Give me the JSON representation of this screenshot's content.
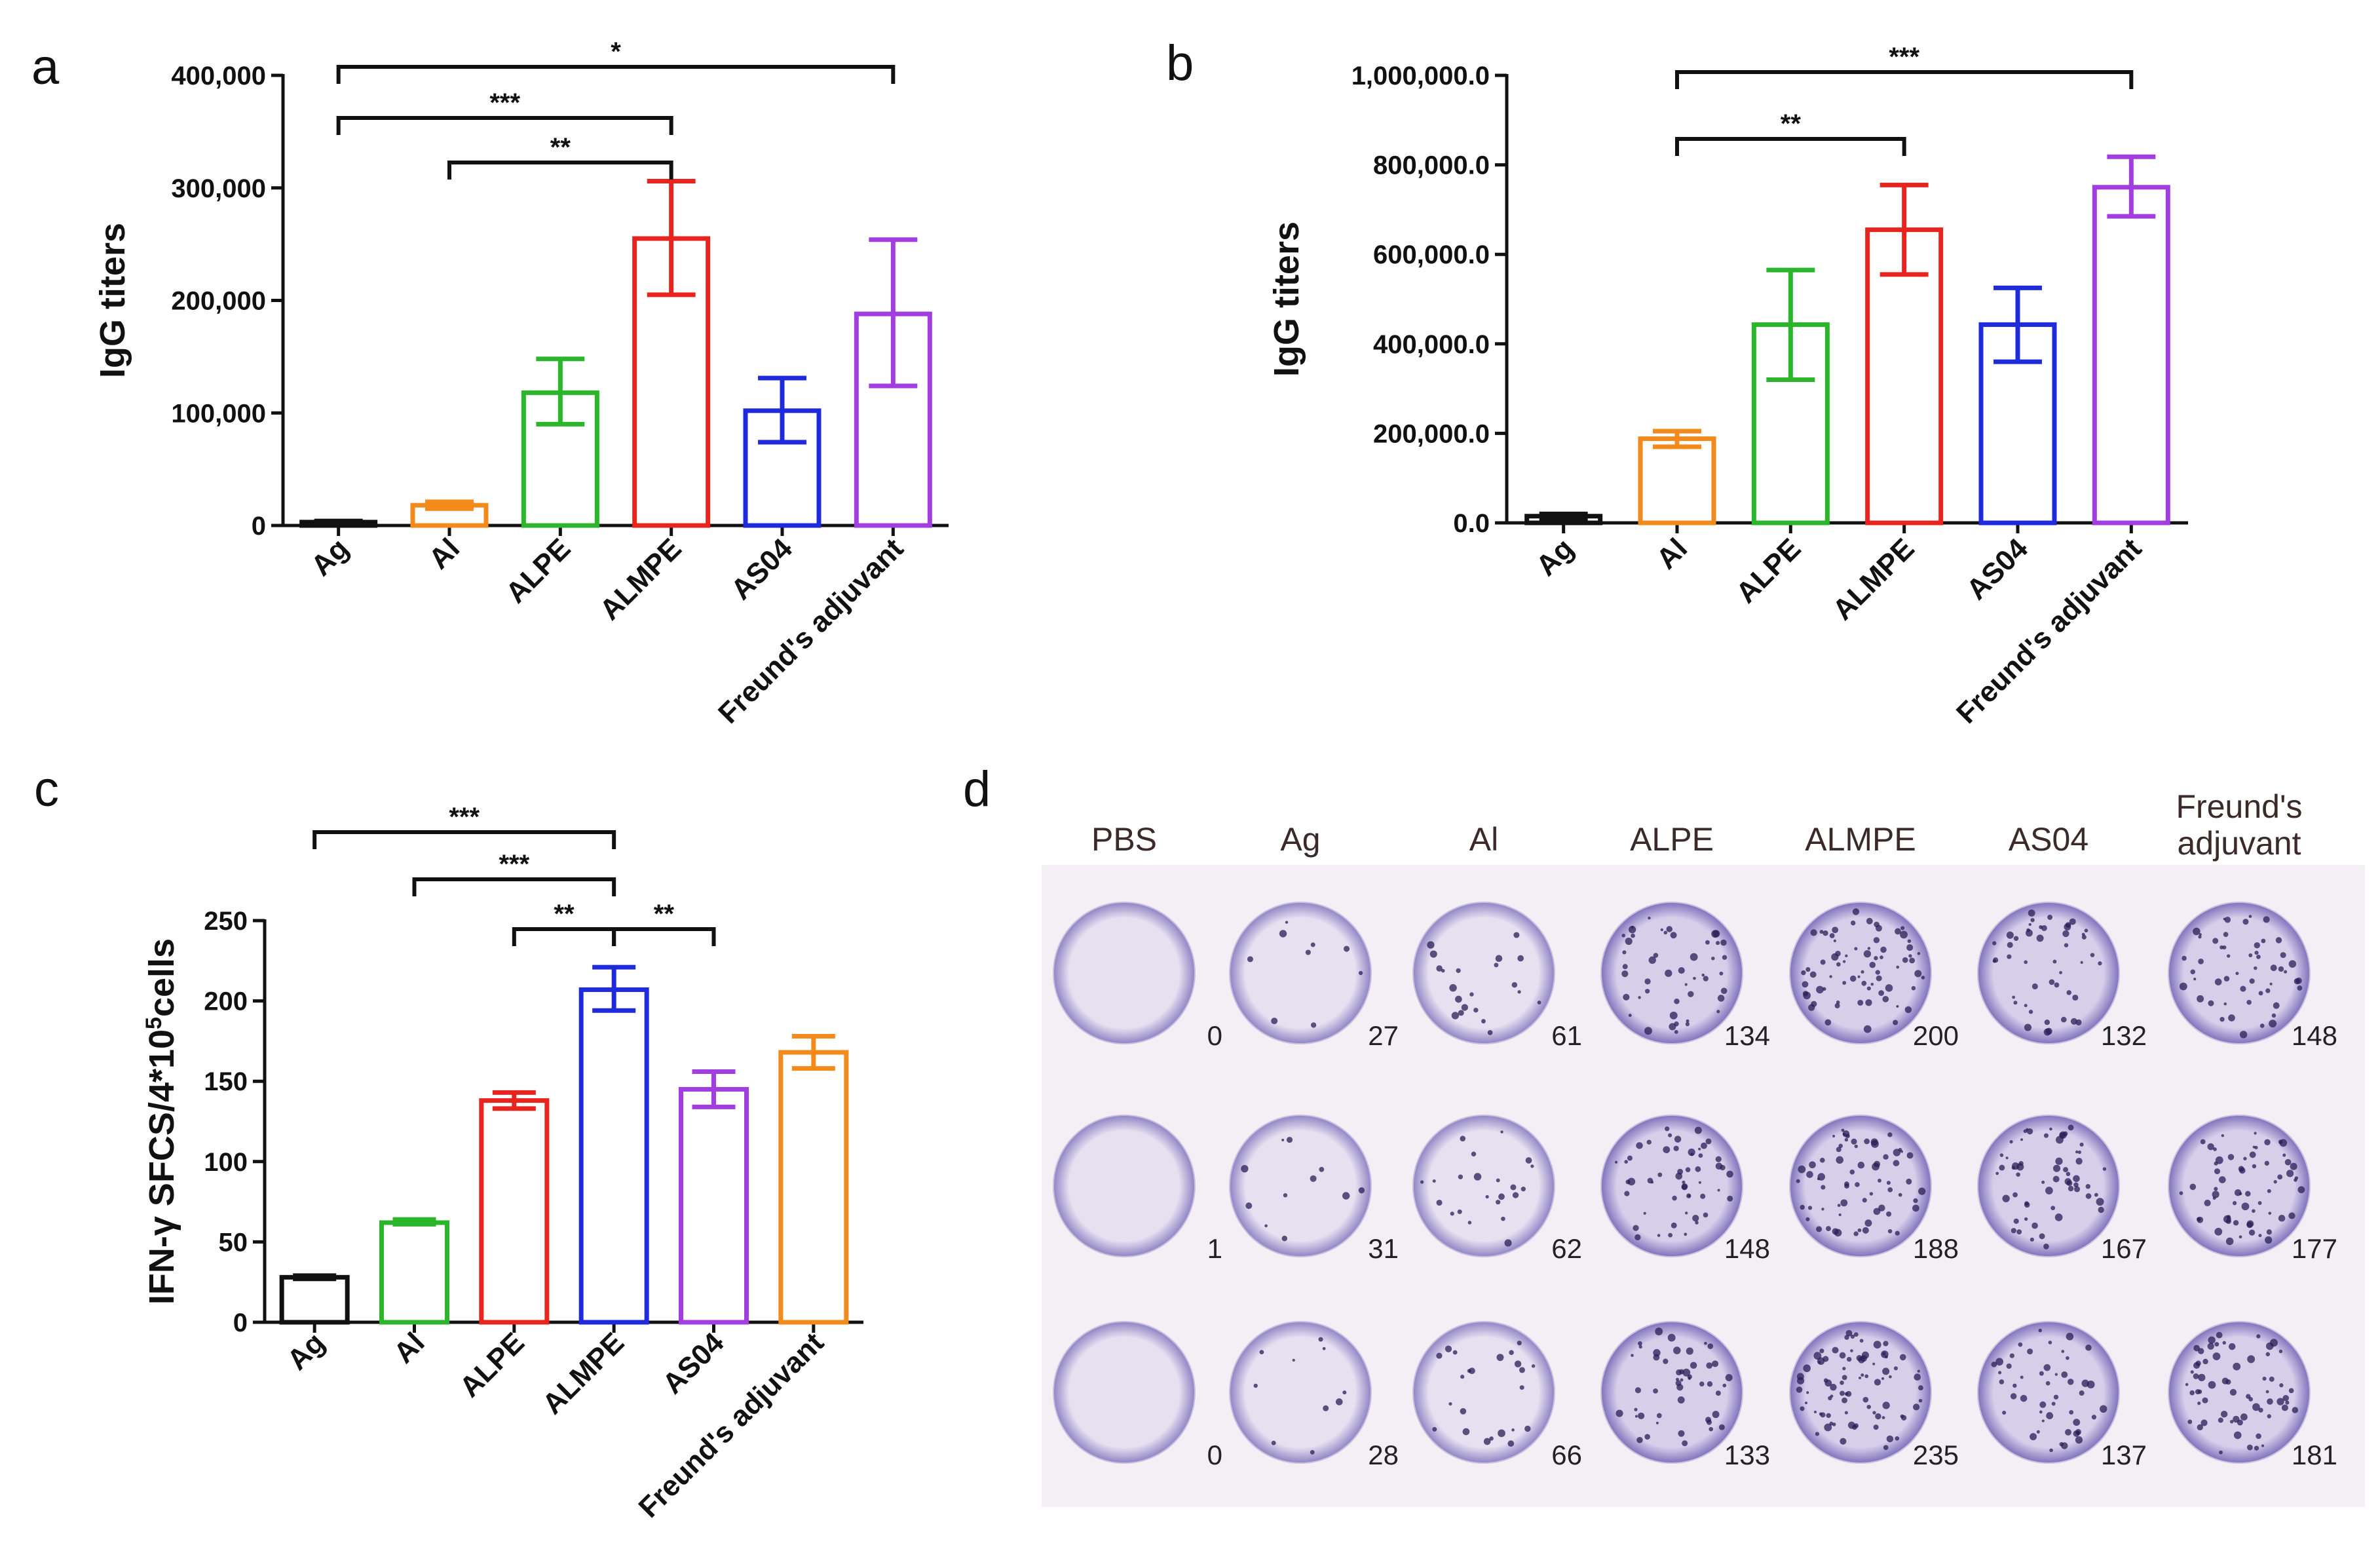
{
  "panel_letters": {
    "a": "a",
    "b": "b",
    "c": "c",
    "d": "d"
  },
  "chart_data": [
    {
      "type": "bar",
      "panel": "a",
      "ylabel": "IgG titers",
      "ylim": [
        0,
        400000
      ],
      "yticks": [
        0,
        100000,
        200000,
        300000,
        400000
      ],
      "ytick_labels": [
        "0",
        "100,000",
        "200,000",
        "300,000",
        "400,000"
      ],
      "categories": [
        "Ag",
        "Al",
        "ALPE",
        "ALMPE",
        "AS04",
        "Freund's adjuvant"
      ],
      "values": [
        3000,
        18000,
        118000,
        255000,
        102000,
        188000
      ],
      "err_low": [
        1500,
        15000,
        90000,
        205000,
        74000,
        124000
      ],
      "err_high": [
        4000,
        21000,
        148000,
        306000,
        131000,
        254000
      ],
      "colors": [
        "#111111",
        "#f28a1c",
        "#2bb52b",
        "#e8241f",
        "#1f2bdb",
        "#a23de0"
      ],
      "significance": [
        {
          "from": 0,
          "to": 5,
          "label": "*"
        },
        {
          "from": 0,
          "to": 3,
          "label": "***"
        },
        {
          "from": 1,
          "to": 3,
          "label": "**"
        }
      ]
    },
    {
      "type": "bar",
      "panel": "b",
      "ylabel": "IgG titers",
      "ylim": [
        0,
        1000000
      ],
      "yticks": [
        0,
        200000,
        400000,
        600000,
        800000,
        1000000
      ],
      "ytick_labels": [
        "0.0",
        "200,000.0",
        "400,000.0",
        "600,000.0",
        "800,000.0",
        "1,000,000.0"
      ],
      "categories": [
        "Ag",
        "Al",
        "ALPE",
        "ALMPE",
        "AS04",
        "Freund's adjuvant"
      ],
      "values": [
        15000,
        188000,
        443000,
        655000,
        443000,
        750000
      ],
      "err_low": [
        10000,
        170000,
        320000,
        555000,
        360000,
        685000
      ],
      "err_high": [
        20000,
        205000,
        565000,
        755000,
        525000,
        818000
      ],
      "colors": [
        "#111111",
        "#f28a1c",
        "#2bb52b",
        "#e8241f",
        "#1f2bdb",
        "#a23de0"
      ],
      "significance": [
        {
          "from": 1,
          "to": 5,
          "label": "***"
        },
        {
          "from": 1,
          "to": 3,
          "label": "**"
        }
      ]
    },
    {
      "type": "bar",
      "panel": "c",
      "ylabel": "IFN-γ  SFCS/4*10",
      "ylabel_sup": "5",
      "ylabel_tail": "cells",
      "ylim": [
        0,
        250
      ],
      "yticks": [
        0,
        50,
        100,
        150,
        200,
        250
      ],
      "ytick_labels": [
        "0",
        "50",
        "100",
        "150",
        "200",
        "250"
      ],
      "categories": [
        "Ag",
        "Al",
        "ALPE",
        "ALMPE",
        "AS04",
        "Freund's adjuvant"
      ],
      "values": [
        28,
        62,
        138,
        207,
        145,
        168
      ],
      "err_low": [
        27,
        61,
        133,
        194,
        134,
        158
      ],
      "err_high": [
        29,
        64,
        143,
        221,
        156,
        178
      ],
      "colors": [
        "#111111",
        "#2bb52b",
        "#e8241f",
        "#1f2bdb",
        "#a23de0",
        "#f28a1c"
      ],
      "significance": [
        {
          "from": 0,
          "to": 3,
          "label": "***"
        },
        {
          "from": 1,
          "to": 3,
          "label": "***"
        },
        {
          "from": 2,
          "to": 3,
          "label": "**"
        },
        {
          "from": 3,
          "to": 4,
          "label": "**"
        }
      ]
    }
  ],
  "elispot": {
    "columns": [
      "PBS",
      "Ag",
      "Al",
      "ALPE",
      "ALMPE",
      "AS04",
      "Freund's\nadjuvant"
    ],
    "counts": [
      [
        0,
        27,
        61,
        134,
        200,
        132,
        148
      ],
      [
        1,
        31,
        62,
        148,
        188,
        167,
        177
      ],
      [
        0,
        28,
        66,
        133,
        235,
        137,
        181
      ]
    ]
  }
}
